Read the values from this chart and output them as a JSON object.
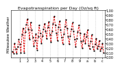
{
  "title": "Evapotranspiration per Day (Oz/sq ft)",
  "left_label": "Milwaukee Weather",
  "background_color": "#ffffff",
  "line_color": "#dd0000",
  "marker_color": "#000000",
  "grid_color": "#bbbbbb",
  "values": [
    0.12,
    0.08,
    0.3,
    0.18,
    0.08,
    0.22,
    0.38,
    0.28,
    0.1,
    0.48,
    0.62,
    0.1,
    0.54,
    0.7,
    0.82,
    0.6,
    0.38,
    0.74,
    0.58,
    0.42,
    0.24,
    0.36,
    0.5,
    0.16,
    0.44,
    0.68,
    0.52,
    0.3,
    0.46,
    0.6,
    0.72,
    0.56,
    0.4,
    0.64,
    0.76,
    0.48,
    0.32,
    0.56,
    0.72,
    0.88,
    0.68,
    0.52,
    0.36,
    0.64,
    0.78,
    0.58,
    0.42,
    0.28,
    0.5,
    0.66,
    0.8,
    0.62,
    0.44,
    0.28,
    0.46,
    0.6,
    0.74,
    0.56,
    0.38,
    0.22,
    0.4,
    0.54,
    0.68,
    0.52,
    0.34,
    0.2,
    0.36,
    0.5,
    0.3,
    0.44,
    0.58,
    0.26,
    0.18,
    0.34,
    0.48,
    0.22,
    0.14,
    0.28,
    0.4,
    0.18,
    0.24,
    0.36,
    0.14,
    0.2,
    0.3,
    0.1
  ],
  "ylim": [
    0.0,
    1.0
  ],
  "ytick_vals": [
    1.0,
    0.9,
    0.8,
    0.7,
    0.6,
    0.5,
    0.4,
    0.3,
    0.2,
    0.1,
    0.0
  ],
  "ytick_labels": [
    "1.00",
    "0.90",
    "0.80",
    "0.70",
    "0.60",
    "0.50",
    "0.40",
    "0.30",
    "0.20",
    "0.10",
    "0.00"
  ],
  "grid_positions": [
    7,
    14,
    21,
    28,
    35,
    42,
    49,
    56,
    63,
    70,
    77,
    84
  ],
  "xtick_labels": [
    "1",
    "2",
    "3",
    "4",
    "5",
    "6",
    "7",
    "8",
    "9",
    "a",
    "b",
    "c"
  ],
  "title_fontsize": 4.5,
  "tick_fontsize": 3.5,
  "label_fontsize": 4.0
}
